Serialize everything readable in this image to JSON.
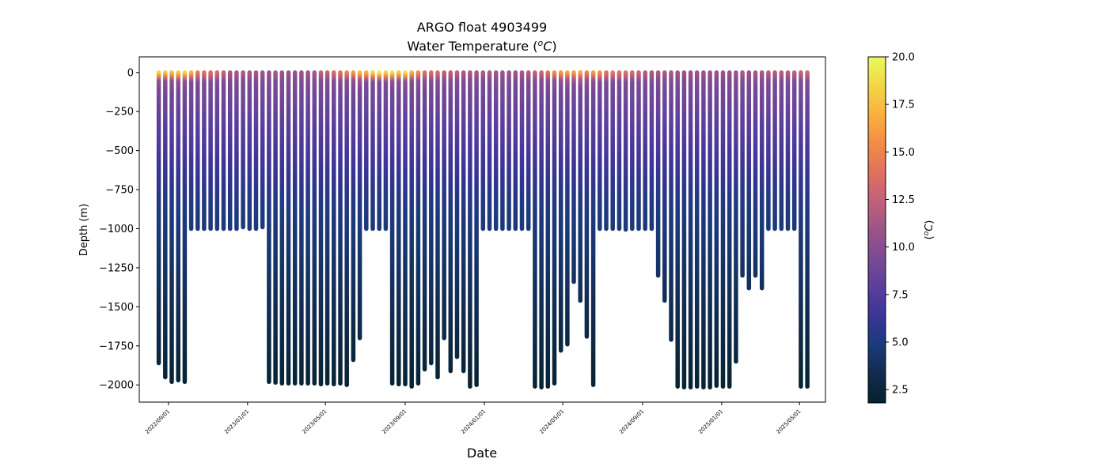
{
  "chart_data": {
    "type": "scatter",
    "title": "ARGO float 4903499",
    "subtitle": "Water Temperature (°C)",
    "subtitle_parts": {
      "prefix": "Water Temperature (",
      "sup": "o",
      "unit": "C",
      "suffix": ")"
    },
    "xlabel": "Date",
    "ylabel": "Depth (m)",
    "ylim": [
      -2110,
      100
    ],
    "xlim": [
      "2022-07-18",
      "2025-06-10"
    ],
    "yticks": [
      0,
      -250,
      -500,
      -750,
      -1000,
      -1250,
      -1500,
      -1750,
      -2000
    ],
    "ytick_labels": [
      "0",
      "−250",
      "−500",
      "−750",
      "−1000",
      "−1250",
      "−1500",
      "−1750",
      "−2000"
    ],
    "xticks": [
      "2022-09-01",
      "2023-01-01",
      "2023-05-01",
      "2023-09-01",
      "2024-01-01",
      "2024-05-01",
      "2024-09-01",
      "2025-01-01",
      "2025-05-01"
    ],
    "xtick_labels": [
      "2022/09/01",
      "2023/01/01",
      "2023/05/01",
      "2023/09/01",
      "2024/01/01",
      "2024/05/01",
      "2024/09/01",
      "2025/01/01",
      "2025/05/01"
    ],
    "colorbar": {
      "label": "(°C)",
      "label_parts": {
        "prefix": "(",
        "sup": "o",
        "unit": "C",
        "suffix": ")"
      },
      "range": [
        1.8,
        20.0
      ],
      "ticks": [
        2.5,
        5.0,
        7.5,
        10.0,
        12.5,
        15.0,
        17.5,
        20.0
      ],
      "tick_labels": [
        "2.5",
        "5.0",
        "7.5",
        "10.0",
        "12.5",
        "15.0",
        "17.5",
        "20.0"
      ],
      "colormap": "thermal",
      "stops": [
        "#04222e",
        "#112b4e",
        "#1a3a7a",
        "#3a3497",
        "#5a3e9c",
        "#7a4a96",
        "#9c5488",
        "#c1607a",
        "#e0715e",
        "#f48c47",
        "#f9b13c",
        "#f3d648",
        "#e8fa5b"
      ]
    },
    "profile_start_date": "2022-08-17",
    "profile_interval_days": 10,
    "profile_max_depths": [
      -1860,
      -1950,
      -1980,
      -1970,
      -1980,
      -1000,
      -1000,
      -1000,
      -1000,
      -1000,
      -1000,
      -1000,
      -1000,
      -990,
      -1000,
      -1000,
      -990,
      -1980,
      -1985,
      -1990,
      -1990,
      -1990,
      -1990,
      -1990,
      -1990,
      -1995,
      -1990,
      -1995,
      -1990,
      -2000,
      -1840,
      -1700,
      -1000,
      -1000,
      -1000,
      -1000,
      -1990,
      -1995,
      -1995,
      -2010,
      -1990,
      -1900,
      -1860,
      -1950,
      -1700,
      -1910,
      -1820,
      -1910,
      -2010,
      -2000,
      -1000,
      -1000,
      -1000,
      -1000,
      -1000,
      -1000,
      -1000,
      -1000,
      -2010,
      -2015,
      -2010,
      -1990,
      -1780,
      -1740,
      -1340,
      -1460,
      -1690,
      -2000,
      -1000,
      -1000,
      -1000,
      -1000,
      -1005,
      -1000,
      -1000,
      -1000,
      -1000,
      -1300,
      -1460,
      -1710,
      -2010,
      -2015,
      -2015,
      -2010,
      -2015,
      -2015,
      -2005,
      -2010,
      -2010,
      -1850,
      -1300,
      -1380,
      -1300,
      -1380,
      -1000,
      -1000,
      -1000,
      -1000,
      -1000,
      -2010,
      -2010
    ],
    "profile_surface_temps": [
      18.5,
      18.0,
      17.5,
      18.0,
      18.5,
      17.0,
      14.5,
      14.0,
      13.5,
      13.5,
      12.5,
      11.5,
      11.5,
      11.5,
      11.5,
      11.5,
      11.0,
      11.0,
      11.5,
      11.0,
      11.0,
      11.0,
      11.0,
      11.0,
      11.5,
      12.5,
      12.5,
      13.5,
      14.0,
      15.0,
      16.0,
      17.5,
      17.0,
      18.5,
      19.5,
      18.5,
      19.0,
      18.0,
      19.0,
      17.0,
      15.5,
      14.0,
      13.5,
      13.5,
      12.5,
      12.5,
      12.0,
      11.5,
      11.5,
      11.5,
      11.5,
      11.5,
      11.0,
      11.0,
      11.0,
      11.0,
      11.5,
      12.0,
      12.5,
      13.0,
      14.0,
      15.5,
      16.0,
      16.5,
      16.0,
      16.5,
      15.0,
      16.0,
      15.5,
      14.0,
      14.5,
      14.0,
      14.0,
      13.5,
      13.0,
      12.0,
      11.5,
      11.5,
      11.5,
      11.5,
      11.0,
      11.0,
      11.0,
      11.0,
      11.0,
      11.0,
      11.0,
      11.0,
      11.0,
      11.0,
      11.5,
      11.0,
      11.5,
      11.5,
      12.0,
      12.0,
      12.0,
      12.0,
      12.5,
      12.5,
      13.0
    ]
  }
}
